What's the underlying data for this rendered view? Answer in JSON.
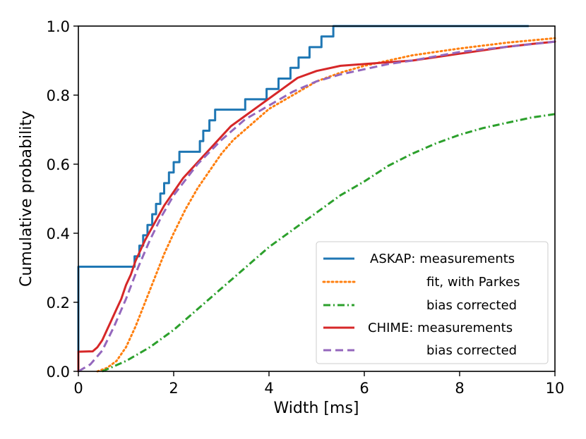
{
  "chart_data": {
    "type": "line",
    "xlabel": "Width [ms]",
    "ylabel": "Cumulative probability",
    "xlim": [
      0,
      10
    ],
    "ylim": [
      0.0,
      1.0
    ],
    "xticks": [
      "0",
      "2",
      "4",
      "6",
      "8",
      "10"
    ],
    "yticks": [
      "0.0",
      "0.2",
      "0.4",
      "0.6",
      "0.8",
      "1.0"
    ],
    "legend_position": "lower-right",
    "legend": [
      {
        "prefix": "ASKAP:",
        "label": "measurements"
      },
      {
        "prefix": "",
        "label": "fit, with Parkes"
      },
      {
        "prefix": "",
        "label": "bias corrected"
      },
      {
        "prefix": "CHIME:",
        "label": "measurements"
      },
      {
        "prefix": "",
        "label": "bias corrected"
      }
    ],
    "series": [
      {
        "name": "ASKAP: measurements",
        "style": "step",
        "color": "#1f77b4",
        "x": [
          0,
          0,
          1.18,
          1.18,
          1.28,
          1.28,
          1.36,
          1.36,
          1.45,
          1.45,
          1.55,
          1.55,
          1.63,
          1.63,
          1.72,
          1.72,
          1.8,
          1.8,
          1.9,
          1.9,
          2.0,
          2.0,
          2.12,
          2.12,
          2.55,
          2.55,
          2.62,
          2.62,
          2.75,
          2.75,
          2.87,
          2.87,
          3.5,
          3.5,
          3.95,
          3.95,
          4.2,
          4.2,
          4.45,
          4.45,
          4.62,
          4.62,
          4.85,
          4.85,
          5.1,
          5.1,
          5.35,
          5.35,
          5.62,
          5.62,
          6.9,
          6.9,
          7.08,
          7.08,
          9.45,
          9.45
        ],
        "y": [
          0,
          0.303,
          0.303,
          0.333,
          0.333,
          0.364,
          0.364,
          0.394,
          0.394,
          0.424,
          0.424,
          0.455,
          0.455,
          0.485,
          0.485,
          0.515,
          0.515,
          0.545,
          0.545,
          0.576,
          0.576,
          0.606,
          0.606,
          0.636,
          0.636,
          0.667,
          0.667,
          0.697,
          0.697,
          0.727,
          0.727,
          0.758,
          0.758,
          0.788,
          0.788,
          0.818,
          0.818,
          0.848,
          0.848,
          0.879,
          0.879,
          0.909,
          0.909,
          0.939,
          0.939,
          0.97,
          0.97,
          1.0,
          1.0,
          1.0,
          1.0,
          1.0,
          1.0,
          1.0,
          1.0,
          1.0
        ]
      },
      {
        "name": "ASKAP: fit, with Parkes",
        "style": "dotted",
        "color": "#ff7f0e",
        "x": [
          0.4,
          0.6,
          0.8,
          1.0,
          1.2,
          1.4,
          1.6,
          1.8,
          2.0,
          2.25,
          2.5,
          2.75,
          3.0,
          3.25,
          3.5,
          4.0,
          4.5,
          5.0,
          5.5,
          6.0,
          6.5,
          7.0,
          8.0,
          9.0,
          10.0
        ],
        "y": [
          0.0,
          0.01,
          0.03,
          0.07,
          0.13,
          0.2,
          0.27,
          0.34,
          0.4,
          0.47,
          0.53,
          0.58,
          0.63,
          0.67,
          0.7,
          0.76,
          0.8,
          0.84,
          0.865,
          0.885,
          0.9,
          0.915,
          0.935,
          0.952,
          0.965
        ]
      },
      {
        "name": "ASKAP: bias corrected",
        "style": "dashdot",
        "color": "#2ca02c",
        "x": [
          0.5,
          1.0,
          1.5,
          2.0,
          2.5,
          3.0,
          3.5,
          4.0,
          4.5,
          5.0,
          5.5,
          6.0,
          6.5,
          7.0,
          7.5,
          8.0,
          8.5,
          9.0,
          9.5,
          10.0
        ],
        "y": [
          0.0,
          0.03,
          0.07,
          0.12,
          0.18,
          0.24,
          0.3,
          0.36,
          0.41,
          0.46,
          0.51,
          0.55,
          0.595,
          0.63,
          0.66,
          0.685,
          0.705,
          0.72,
          0.735,
          0.745
        ]
      },
      {
        "name": "CHIME: measurements",
        "style": "line",
        "color": "#d62728",
        "x": [
          0,
          0,
          0.3,
          0.4,
          0.5,
          0.6,
          0.7,
          0.8,
          0.9,
          1.0,
          1.1,
          1.2,
          1.4,
          1.6,
          1.8,
          2.0,
          2.2,
          2.4,
          2.6,
          2.8,
          3.0,
          3.2,
          3.5,
          3.8,
          4.0,
          4.3,
          4.6,
          5.0,
          5.5,
          6.0,
          6.5,
          7.0,
          7.5,
          8.0,
          8.5,
          9.0,
          9.5,
          10.0
        ],
        "y": [
          0.0,
          0.057,
          0.058,
          0.07,
          0.09,
          0.12,
          0.15,
          0.18,
          0.21,
          0.25,
          0.28,
          0.32,
          0.38,
          0.43,
          0.48,
          0.52,
          0.56,
          0.59,
          0.62,
          0.65,
          0.68,
          0.71,
          0.74,
          0.77,
          0.79,
          0.82,
          0.85,
          0.87,
          0.885,
          0.89,
          0.895,
          0.9,
          0.91,
          0.92,
          0.93,
          0.94,
          0.948,
          0.955
        ]
      },
      {
        "name": "CHIME: bias corrected",
        "style": "dashed",
        "color": "#9467bd",
        "x": [
          0,
          0.25,
          0.5,
          0.75,
          1.0,
          1.25,
          1.5,
          1.75,
          2.0,
          2.5,
          3.0,
          3.5,
          4.0,
          4.5,
          5.0,
          5.5,
          6.0,
          6.5,
          7.0,
          8.0,
          9.0,
          10.0
        ],
        "y": [
          0.0,
          0.02,
          0.06,
          0.13,
          0.21,
          0.3,
          0.38,
          0.45,
          0.51,
          0.6,
          0.67,
          0.73,
          0.77,
          0.81,
          0.84,
          0.86,
          0.875,
          0.89,
          0.9,
          0.925,
          0.94,
          0.955
        ]
      }
    ]
  }
}
